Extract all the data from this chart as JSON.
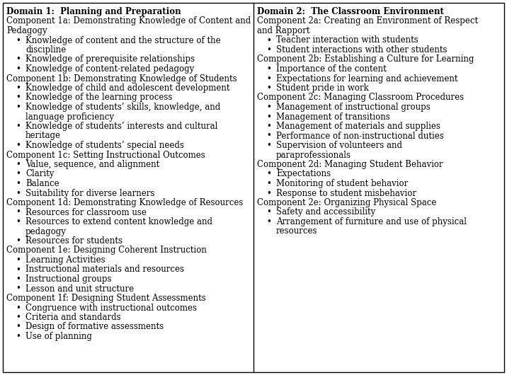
{
  "col1_header": "Domain 1:  Planning and Preparation",
  "col2_header": "Domain 2:  The Classroom Environment",
  "col1_content": [
    {
      "type": "component",
      "text": "Component 1a:  Demonstrating Knowledge of Content and Pedagogy",
      "wrap": true
    },
    {
      "type": "bullet",
      "text": "Knowledge of content and the structure of the discipline"
    },
    {
      "type": "bullet",
      "text": "Knowledge of prerequisite relationships"
    },
    {
      "type": "bullet",
      "text": "Knowledge of content-related pedagogy"
    },
    {
      "type": "component",
      "text": "Component 1b:  Demonstrating Knowledge of Students"
    },
    {
      "type": "bullet",
      "text": "Knowledge of child and adolescent development"
    },
    {
      "type": "bullet",
      "text": "Knowledge of the learning process"
    },
    {
      "type": "bullet",
      "text": "Knowledge of students’ skills, knowledge, and language proficiency",
      "wrap": true
    },
    {
      "type": "bullet",
      "text": "Knowledge of students’ interests and cultural heritage"
    },
    {
      "type": "bullet",
      "text": "Knowledge of students’ special needs"
    },
    {
      "type": "component",
      "text": "Component 1c:  Setting Instructional Outcomes"
    },
    {
      "type": "bullet",
      "text": "Value, sequence, and alignment"
    },
    {
      "type": "bullet",
      "text": "Clarity"
    },
    {
      "type": "bullet",
      "text": "Balance"
    },
    {
      "type": "bullet",
      "text": "Suitability for diverse learners"
    },
    {
      "type": "component",
      "text": "Component 1d:  Demonstrating Knowledge of Resources"
    },
    {
      "type": "bullet",
      "text": "Resources for classroom use"
    },
    {
      "type": "bullet",
      "text": "Resources to extend content knowledge and pedagogy"
    },
    {
      "type": "bullet",
      "text": "Resources for students"
    },
    {
      "type": "component",
      "text": "Component 1e:  Designing Coherent Instruction"
    },
    {
      "type": "bullet",
      "text": "Learning Activities"
    },
    {
      "type": "bullet",
      "text": "Instructional materials and resources"
    },
    {
      "type": "bullet",
      "text": "Instructional groups"
    },
    {
      "type": "bullet",
      "text": "Lesson and unit structure"
    },
    {
      "type": "component",
      "text": "Component 1f:  Designing Student Assessments"
    },
    {
      "type": "bullet",
      "text": "Congruence with instructional outcomes"
    },
    {
      "type": "bullet",
      "text": "Criteria and standards"
    },
    {
      "type": "bullet",
      "text": "Design of formative assessments"
    },
    {
      "type": "bullet",
      "text": "Use of planning"
    }
  ],
  "col2_content": [
    {
      "type": "component",
      "text": "Component 2a:  Creating an Environment of Respect and Rapport",
      "wrap": true
    },
    {
      "type": "bullet",
      "text": "Teacher interaction with students"
    },
    {
      "type": "bullet",
      "text": "Student interactions with other students"
    },
    {
      "type": "component",
      "text": "Component 2b:  Establishing a Culture for Learning"
    },
    {
      "type": "bullet",
      "text": "Importance of the content"
    },
    {
      "type": "bullet",
      "text": "Expectations for learning and achievement"
    },
    {
      "type": "bullet",
      "text": "Student pride in work"
    },
    {
      "type": "component",
      "text": "Component 2c:  Managing Classroom Procedures"
    },
    {
      "type": "bullet",
      "text": "Management of instructional groups"
    },
    {
      "type": "bullet",
      "text": "Management of transitions"
    },
    {
      "type": "bullet",
      "text": "Management of materials and supplies"
    },
    {
      "type": "bullet",
      "text": "Performance of non-instructional duties"
    },
    {
      "type": "bullet",
      "text": "Supervision of volunteers and paraprofessionals"
    },
    {
      "type": "component",
      "text": "Component 2d:  Managing Student Behavior"
    },
    {
      "type": "bullet",
      "text": "Expectations"
    },
    {
      "type": "bullet",
      "text": "Monitoring of student behavior"
    },
    {
      "type": "bullet",
      "text": "Response to student misbehavior"
    },
    {
      "type": "component",
      "text": "Component 2e:  Organizing Physical Space"
    },
    {
      "type": "bullet",
      "text": "Safety and accessibility"
    },
    {
      "type": "bullet",
      "text": "Arrangement of furniture and use of physical resources",
      "wrap": true
    }
  ],
  "bg_color": "#ffffff",
  "border_color": "#000000",
  "font_size": 8.5,
  "header_font_size": 8.5
}
